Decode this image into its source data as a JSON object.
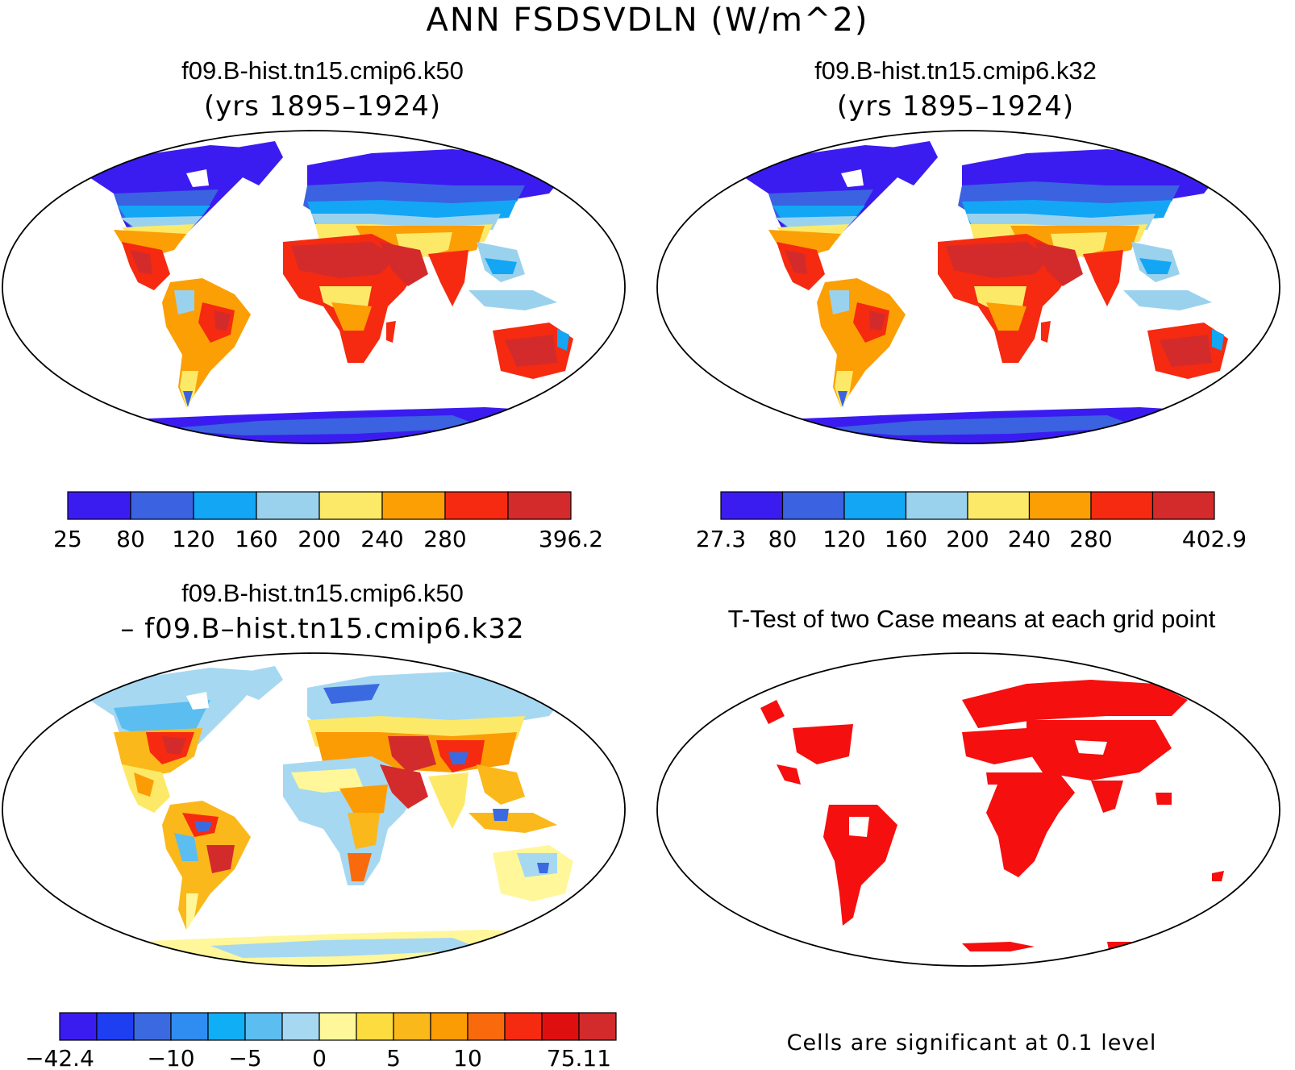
{
  "figure": {
    "title": "ANN FSDSVDLN (W/m^2)"
  },
  "panels": [
    {
      "id": "case1",
      "title": "f09.B-hist.tn15.cmip6.k50",
      "subtitle": "(yrs 1895–1924)",
      "colorbar": {
        "colors": [
          "#3b1cf0",
          "#3b62e0",
          "#12a6f5",
          "#9ad2ee",
          "#fde968",
          "#fb9f05",
          "#f52a10",
          "#d32b2b"
        ],
        "tick_labels": [
          "25",
          "80",
          "120",
          "160",
          "200",
          "240",
          "280",
          "",
          "396.2"
        ]
      }
    },
    {
      "id": "case2",
      "title": "f09.B-hist.tn15.cmip6.k32",
      "subtitle": "(yrs 1895–1924)",
      "colorbar": {
        "colors": [
          "#3b1cf0",
          "#3b62e0",
          "#12a6f5",
          "#9ad2ee",
          "#fde968",
          "#fb9f05",
          "#f52a10",
          "#d32b2b"
        ],
        "tick_labels": [
          "27.3",
          "80",
          "120",
          "160",
          "200",
          "240",
          "280",
          "",
          "402.9"
        ]
      }
    },
    {
      "id": "difference",
      "title": "f09.B-hist.tn15.cmip6.k50",
      "subtitle": "– f09.B–hist.tn15.cmip6.k32",
      "colorbar": {
        "colors": [
          "#3b1cf0",
          "#1e3ef2",
          "#3b6ae0",
          "#2f8cf0",
          "#10aef5",
          "#5cbdf0",
          "#a6d8f2",
          "#fff799",
          "#fddc40",
          "#fbb81a",
          "#fb9c05",
          "#f96a0c",
          "#f52a10",
          "#e00f0f",
          "#d32b2b"
        ],
        "tick_labels": [
          "−42.4",
          "",
          "",
          "−10",
          "",
          "−5",
          "",
          "0",
          "",
          "5",
          "",
          "10",
          "",
          "",
          "75.11"
        ]
      }
    },
    {
      "id": "ttest",
      "title": "T-Test of two Case means at each grid point",
      "note": "Cells are significant at 0.1 level",
      "significance_color": "#f50f0f"
    }
  ]
}
